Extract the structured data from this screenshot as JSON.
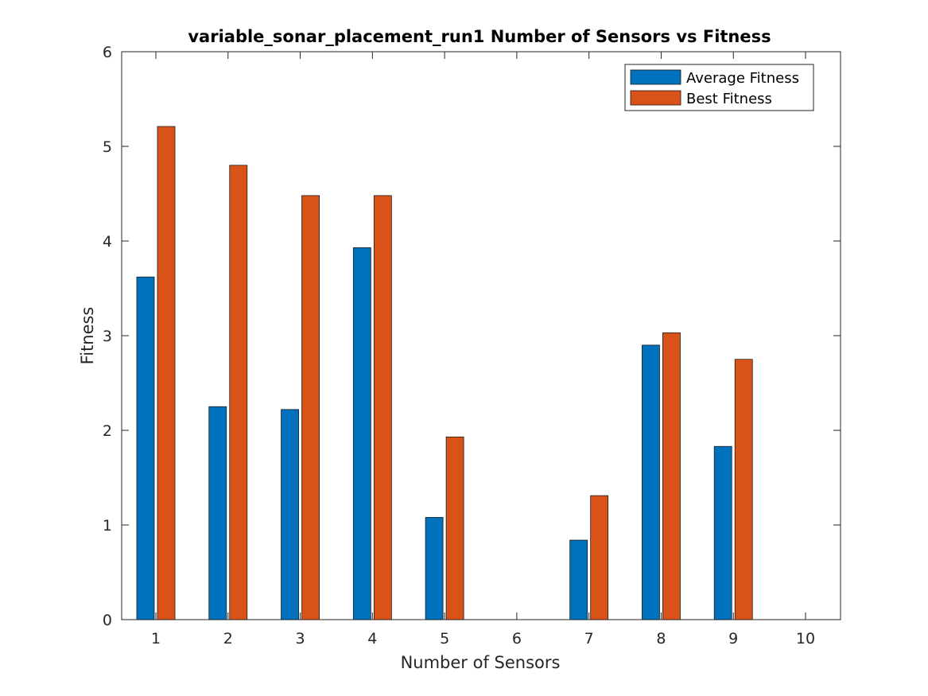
{
  "chart_data": {
    "type": "bar",
    "title": "variable_sonar_placement_run1 Number of Sensors vs Fitness",
    "xlabel": "Number of Sensors",
    "ylabel": "Fitness",
    "categories": [
      "1",
      "2",
      "3",
      "4",
      "5",
      "6",
      "7",
      "8",
      "9",
      "10"
    ],
    "yticks": [
      "0",
      "1",
      "2",
      "3",
      "4",
      "5",
      "6"
    ],
    "ylim": [
      0,
      6
    ],
    "grid": false,
    "legend_position": "top-right",
    "series": [
      {
        "name": "Average Fitness",
        "color": "#0072BD",
        "values": [
          3.62,
          2.25,
          2.22,
          3.93,
          1.08,
          0,
          0.84,
          2.9,
          1.83,
          0
        ]
      },
      {
        "name": "Best Fitness",
        "color": "#D95319",
        "values": [
          5.21,
          4.8,
          4.48,
          4.48,
          1.93,
          0,
          1.31,
          3.03,
          2.75,
          0
        ]
      }
    ]
  }
}
